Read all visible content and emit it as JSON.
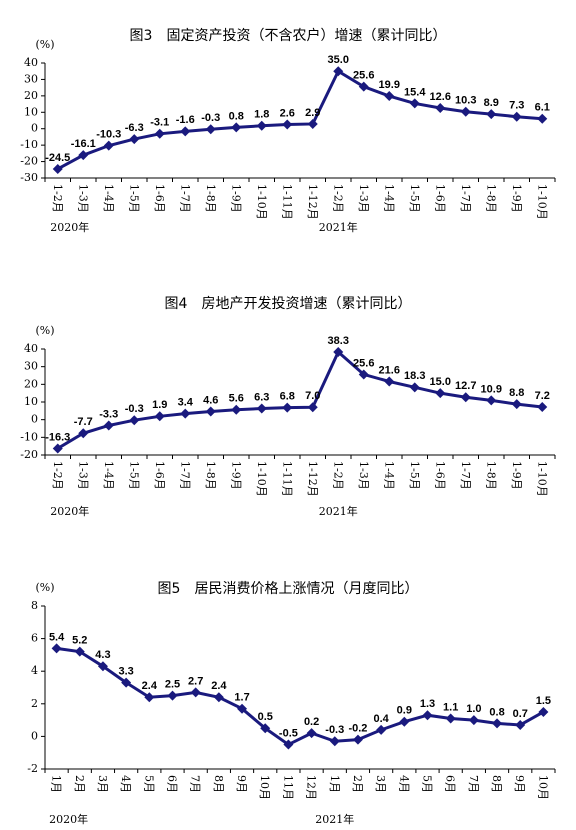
{
  "chart_data": [
    {
      "type": "line",
      "title": "图3　固定资产投资（不含农户）增速（累计同比）",
      "unit": "(%)",
      "categories": [
        "1-2月",
        "1-3月",
        "1-4月",
        "1-5月",
        "1-6月",
        "1-7月",
        "1-8月",
        "1-9月",
        "1-10月",
        "1-11月",
        "1-12月",
        "1-2月",
        "1-3月",
        "1-4月",
        "1-5月",
        "1-6月",
        "1-7月",
        "1-8月",
        "1-9月",
        "1-10月"
      ],
      "year_labels": [
        "2020年",
        "2021年"
      ],
      "values": [
        -24.5,
        -16.1,
        -10.3,
        -6.3,
        -3.1,
        -1.6,
        -0.3,
        0.8,
        1.8,
        2.6,
        2.9,
        35.0,
        25.6,
        19.9,
        15.4,
        12.6,
        10.3,
        8.9,
        7.3,
        6.1
      ],
      "value_labels": [
        "-24.5",
        "-16.1",
        "-10.3",
        "-6.3",
        "-3.1",
        "-1.6",
        "-0.3",
        "0.8",
        "1.8",
        "2.6",
        "2.9",
        "35.0",
        "25.6",
        "19.9",
        "15.4",
        "12.6",
        "10.3",
        "8.9",
        "7.3",
        "6.1"
      ],
      "color": "#1a1a7e",
      "ylim": [
        -30,
        40
      ],
      "yticks": [
        -30,
        -20,
        -10,
        0,
        10,
        20,
        30,
        40
      ]
    },
    {
      "type": "line",
      "title": "图4　房地产开发投资增速（累计同比）",
      "unit": "(%)",
      "categories": [
        "1-2月",
        "1-3月",
        "1-4月",
        "1-5月",
        "1-6月",
        "1-7月",
        "1-8月",
        "1-9月",
        "1-10月",
        "1-11月",
        "1-12月",
        "1-2月",
        "1-3月",
        "1-4月",
        "1-5月",
        "1-6月",
        "1-7月",
        "1-8月",
        "1-9月",
        "1-10月"
      ],
      "year_labels": [
        "2020年",
        "2021年"
      ],
      "values": [
        -16.3,
        -7.7,
        -3.3,
        -0.3,
        1.9,
        3.4,
        4.6,
        5.6,
        6.3,
        6.8,
        7.0,
        38.3,
        25.6,
        21.6,
        18.3,
        15.0,
        12.7,
        10.9,
        8.8,
        7.2
      ],
      "value_labels": [
        "-16.3",
        "-7.7",
        "-3.3",
        "-0.3",
        "1.9",
        "3.4",
        "4.6",
        "5.6",
        "6.3",
        "6.8",
        "7.0",
        "38.3",
        "25.6",
        "21.6",
        "18.3",
        "15.0",
        "12.7",
        "10.9",
        "8.8",
        "7.2"
      ],
      "color": "#1a1a7e",
      "ylim": [
        -20,
        40
      ],
      "yticks": [
        -20,
        -10,
        0,
        10,
        20,
        30,
        40
      ]
    },
    {
      "type": "line",
      "title": "图5　居民消费价格上涨情况（月度同比）",
      "unit": "(%)",
      "categories": [
        "1月",
        "2月",
        "3月",
        "4月",
        "5月",
        "6月",
        "7月",
        "8月",
        "9月",
        "10月",
        "11月",
        "12月",
        "1月",
        "2月",
        "3月",
        "4月",
        "5月",
        "6月",
        "7月",
        "8月",
        "9月",
        "10月"
      ],
      "year_labels": [
        "2020年",
        "2021年"
      ],
      "values": [
        5.4,
        5.2,
        4.3,
        3.3,
        2.4,
        2.5,
        2.7,
        2.4,
        1.7,
        0.5,
        -0.5,
        0.2,
        -0.3,
        -0.2,
        0.4,
        0.9,
        1.3,
        1.1,
        1.0,
        0.8,
        0.7,
        1.5
      ],
      "value_labels": [
        "5.4",
        "5.2",
        "4.3",
        "3.3",
        "2.4",
        "2.5",
        "2.7",
        "2.4",
        "1.7",
        "0.5",
        "-0.5",
        "0.2",
        "-0.3",
        "-0.2",
        "0.4",
        "0.9",
        "1.3",
        "1.1",
        "1.0",
        "0.8",
        "0.7",
        "1.5"
      ],
      "color": "#1a1a7e",
      "ylim": [
        -2,
        8
      ],
      "yticks": [
        -2,
        0,
        2,
        4,
        6,
        8
      ]
    }
  ]
}
